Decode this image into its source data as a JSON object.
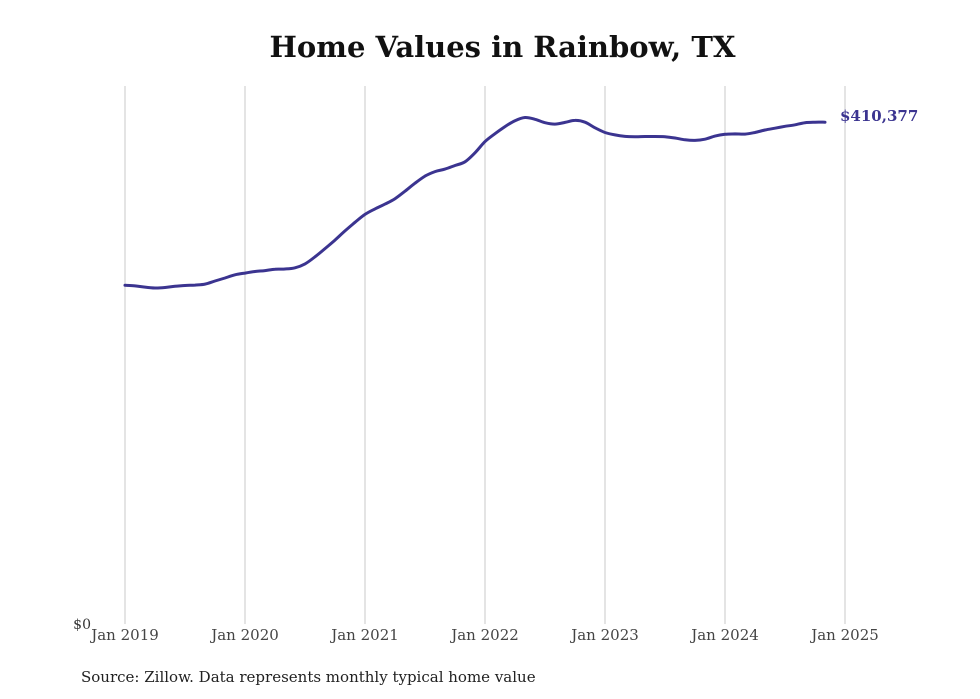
{
  "chart_data": {
    "type": "line",
    "title": "Home Values in Rainbow, TX",
    "x_tick_labels": [
      "Jan 2019",
      "Jan 2020",
      "Jan 2021",
      "Jan 2022",
      "Jan 2023",
      "Jan 2024",
      "Jan 2025"
    ],
    "y_tick_labels": [
      "$0"
    ],
    "ylim": [
      0,
      440000
    ],
    "grid": "vertical",
    "line_color": "#3b3490",
    "series": [
      {
        "end_label": "$410,377",
        "points": [
          [
            "2019-01",
            277000
          ],
          [
            "2019-02",
            276500
          ],
          [
            "2019-03",
            275500
          ],
          [
            "2019-04",
            274800
          ],
          [
            "2019-05",
            275200
          ],
          [
            "2019-06",
            276200
          ],
          [
            "2019-07",
            276800
          ],
          [
            "2019-08",
            277200
          ],
          [
            "2019-09",
            278000
          ],
          [
            "2019-10",
            280500
          ],
          [
            "2019-11",
            283000
          ],
          [
            "2019-12",
            285600
          ],
          [
            "2020-01",
            287000
          ],
          [
            "2020-02",
            288300
          ],
          [
            "2020-03",
            289000
          ],
          [
            "2020-04",
            290200
          ],
          [
            "2020-05",
            290300
          ],
          [
            "2020-06",
            291300
          ],
          [
            "2020-07",
            294500
          ],
          [
            "2020-08",
            300300
          ],
          [
            "2020-09",
            307000
          ],
          [
            "2020-10",
            314000
          ],
          [
            "2020-11",
            321500
          ],
          [
            "2020-12",
            328500
          ],
          [
            "2021-01",
            335000
          ],
          [
            "2021-02",
            339500
          ],
          [
            "2021-03",
            343400
          ],
          [
            "2021-04",
            347800
          ],
          [
            "2021-05",
            354000
          ],
          [
            "2021-06",
            360500
          ],
          [
            "2021-07",
            366300
          ],
          [
            "2021-08",
            370000
          ],
          [
            "2021-09",
            372000
          ],
          [
            "2021-10",
            375000
          ],
          [
            "2021-11",
            378000
          ],
          [
            "2021-12",
            385400
          ],
          [
            "2022-01",
            394500
          ],
          [
            "2022-02",
            401000
          ],
          [
            "2022-03",
            406800
          ],
          [
            "2022-04",
            411600
          ],
          [
            "2022-05",
            414200
          ],
          [
            "2022-06",
            412800
          ],
          [
            "2022-07",
            410000
          ],
          [
            "2022-08",
            408800
          ],
          [
            "2022-09",
            410200
          ],
          [
            "2022-10",
            411900
          ],
          [
            "2022-11",
            410400
          ],
          [
            "2022-12",
            405800
          ],
          [
            "2023-01",
            402000
          ],
          [
            "2023-02",
            400000
          ],
          [
            "2023-03",
            398800
          ],
          [
            "2023-04",
            398500
          ],
          [
            "2023-05",
            398700
          ],
          [
            "2023-06",
            398700
          ],
          [
            "2023-07",
            398500
          ],
          [
            "2023-08",
            397500
          ],
          [
            "2023-09",
            396000
          ],
          [
            "2023-10",
            395500
          ],
          [
            "2023-11",
            396500
          ],
          [
            "2023-12",
            399000
          ],
          [
            "2024-01",
            400500
          ],
          [
            "2024-02",
            400800
          ],
          [
            "2024-03",
            400700
          ],
          [
            "2024-04",
            402000
          ],
          [
            "2024-05",
            404000
          ],
          [
            "2024-06",
            405500
          ],
          [
            "2024-07",
            407000
          ],
          [
            "2024-08",
            408300
          ],
          [
            "2024-09",
            410000
          ],
          [
            "2024-10",
            410400
          ],
          [
            "2024-11",
            410377
          ]
        ]
      }
    ]
  },
  "source_note": "Source: Zillow. Data represents monthly typical home value"
}
